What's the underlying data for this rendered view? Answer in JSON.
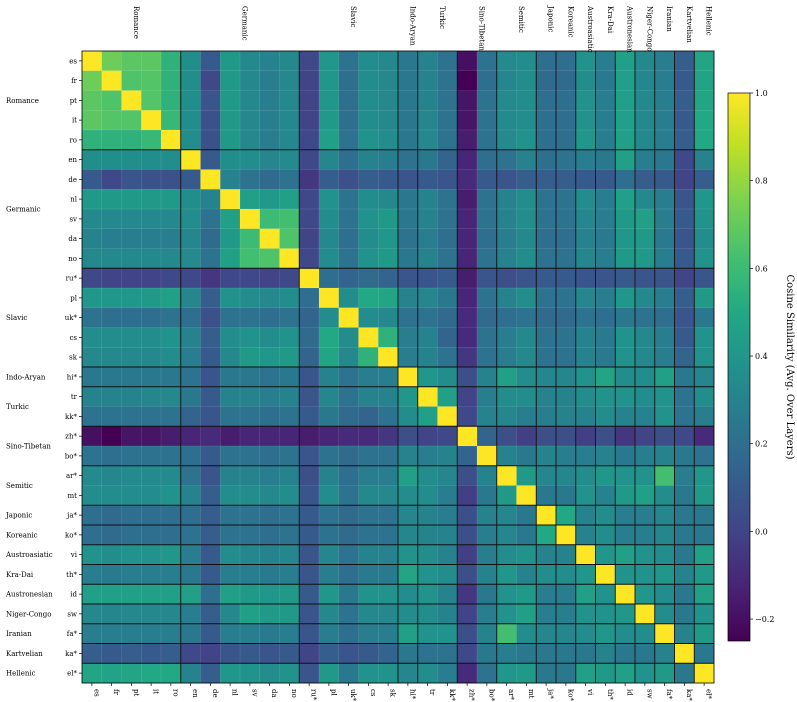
{
  "chart_data": {
    "type": "heatmap",
    "title": "",
    "languages": [
      "es",
      "fr",
      "pt",
      "it",
      "ro",
      "en",
      "de",
      "nl",
      "sv",
      "da",
      "no",
      "ru*",
      "pl",
      "uk*",
      "cs",
      "sk",
      "hi*",
      "tr",
      "kk*",
      "zh*",
      "bo*",
      "ar*",
      "mt",
      "ja*",
      "ko*",
      "vi",
      "th*",
      "id",
      "sw",
      "fa*",
      "ka*",
      "el*"
    ],
    "families": [
      {
        "name": "Romance",
        "start": 0,
        "end": 4
      },
      {
        "name": "Germanic",
        "start": 5,
        "end": 10
      },
      {
        "name": "Slavic",
        "start": 11,
        "end": 15
      },
      {
        "name": "Indo-Aryan",
        "start": 16,
        "end": 16
      },
      {
        "name": "Turkic",
        "start": 17,
        "end": 18
      },
      {
        "name": "Sino-Tibetan",
        "start": 19,
        "end": 20
      },
      {
        "name": "Semitic",
        "start": 21,
        "end": 22
      },
      {
        "name": "Japonic",
        "start": 23,
        "end": 23
      },
      {
        "name": "Koreanic",
        "start": 24,
        "end": 24
      },
      {
        "name": "Austroasiatic",
        "start": 25,
        "end": 25
      },
      {
        "name": "Kra-Dai",
        "start": 26,
        "end": 26
      },
      {
        "name": "Austronesian",
        "start": 27,
        "end": 27
      },
      {
        "name": "Niger-Congo",
        "start": 28,
        "end": 28
      },
      {
        "name": "Iranian",
        "start": 29,
        "end": 29
      },
      {
        "name": "Kartvelian",
        "start": 30,
        "end": 30
      },
      {
        "name": "Hellenic",
        "start": 31,
        "end": 31
      }
    ],
    "matrix": [
      [
        1.0,
        0.72,
        0.68,
        0.68,
        0.55,
        0.36,
        0.1,
        0.42,
        0.33,
        0.3,
        0.33,
        0.02,
        0.4,
        0.22,
        0.35,
        0.33,
        0.25,
        0.3,
        0.22,
        -0.2,
        0.22,
        0.34,
        0.35,
        0.2,
        0.2,
        0.38,
        0.28,
        0.45,
        0.33,
        0.28,
        0.12,
        0.48
      ],
      [
        0.72,
        1.0,
        0.65,
        0.66,
        0.55,
        0.36,
        0.02,
        0.42,
        0.33,
        0.28,
        0.33,
        0.0,
        0.4,
        0.2,
        0.35,
        0.33,
        0.25,
        0.3,
        0.22,
        -0.25,
        0.2,
        0.32,
        0.35,
        0.18,
        0.18,
        0.36,
        0.26,
        0.45,
        0.32,
        0.28,
        0.1,
        0.47
      ],
      [
        0.68,
        0.65,
        1.0,
        0.66,
        0.55,
        0.36,
        0.08,
        0.42,
        0.33,
        0.28,
        0.33,
        0.0,
        0.4,
        0.2,
        0.35,
        0.33,
        0.25,
        0.3,
        0.22,
        -0.18,
        0.22,
        0.34,
        0.35,
        0.2,
        0.2,
        0.38,
        0.28,
        0.45,
        0.33,
        0.28,
        0.12,
        0.48
      ],
      [
        0.68,
        0.66,
        0.66,
        1.0,
        0.58,
        0.36,
        0.06,
        0.42,
        0.33,
        0.28,
        0.33,
        0.0,
        0.42,
        0.2,
        0.35,
        0.33,
        0.25,
        0.32,
        0.22,
        -0.18,
        0.22,
        0.34,
        0.35,
        0.2,
        0.2,
        0.38,
        0.28,
        0.45,
        0.33,
        0.28,
        0.1,
        0.5
      ],
      [
        0.55,
        0.55,
        0.55,
        0.58,
        1.0,
        0.36,
        0.06,
        0.42,
        0.33,
        0.28,
        0.33,
        0.02,
        0.45,
        0.22,
        0.38,
        0.35,
        0.25,
        0.33,
        0.22,
        -0.15,
        0.22,
        0.34,
        0.38,
        0.2,
        0.2,
        0.4,
        0.28,
        0.45,
        0.33,
        0.28,
        0.12,
        0.5
      ],
      [
        0.36,
        0.36,
        0.36,
        0.36,
        0.36,
        1.0,
        0.1,
        0.36,
        0.35,
        0.32,
        0.34,
        0.02,
        0.32,
        0.2,
        0.3,
        0.28,
        0.22,
        0.25,
        0.15,
        -0.12,
        0.2,
        0.22,
        0.3,
        0.2,
        0.22,
        0.28,
        0.25,
        0.45,
        0.28,
        0.25,
        0.02,
        0.3
      ],
      [
        0.1,
        0.02,
        0.08,
        0.06,
        0.06,
        0.1,
        1.0,
        0.3,
        0.22,
        0.18,
        0.22,
        -0.05,
        0.12,
        0.06,
        0.12,
        0.1,
        0.08,
        0.1,
        0.08,
        -0.1,
        0.1,
        0.08,
        0.12,
        0.12,
        0.12,
        0.1,
        0.1,
        0.2,
        0.12,
        0.1,
        0.0,
        0.12
      ],
      [
        0.42,
        0.42,
        0.42,
        0.42,
        0.42,
        0.36,
        0.3,
        1.0,
        0.45,
        0.42,
        0.45,
        0.02,
        0.38,
        0.22,
        0.35,
        0.33,
        0.25,
        0.3,
        0.22,
        -0.15,
        0.22,
        0.3,
        0.35,
        0.22,
        0.22,
        0.35,
        0.28,
        0.45,
        0.33,
        0.28,
        0.08,
        0.4
      ],
      [
        0.33,
        0.33,
        0.33,
        0.33,
        0.33,
        0.35,
        0.22,
        0.45,
        1.0,
        0.6,
        0.62,
        0.02,
        0.35,
        0.22,
        0.38,
        0.42,
        0.25,
        0.3,
        0.22,
        -0.12,
        0.22,
        0.3,
        0.35,
        0.22,
        0.22,
        0.32,
        0.28,
        0.42,
        0.45,
        0.28,
        0.1,
        0.38
      ],
      [
        0.3,
        0.28,
        0.28,
        0.28,
        0.28,
        0.32,
        0.18,
        0.42,
        0.6,
        1.0,
        0.65,
        0.0,
        0.33,
        0.2,
        0.35,
        0.4,
        0.22,
        0.28,
        0.2,
        -0.12,
        0.2,
        0.28,
        0.33,
        0.2,
        0.2,
        0.3,
        0.26,
        0.4,
        0.42,
        0.26,
        0.08,
        0.35
      ],
      [
        0.33,
        0.33,
        0.33,
        0.33,
        0.33,
        0.34,
        0.22,
        0.45,
        0.62,
        0.65,
        1.0,
        0.02,
        0.35,
        0.22,
        0.38,
        0.42,
        0.25,
        0.3,
        0.22,
        -0.12,
        0.22,
        0.3,
        0.35,
        0.22,
        0.22,
        0.32,
        0.28,
        0.42,
        0.42,
        0.28,
        0.1,
        0.38
      ],
      [
        0.02,
        0.0,
        0.0,
        0.0,
        0.02,
        0.02,
        -0.05,
        0.02,
        0.02,
        0.0,
        0.02,
        1.0,
        0.2,
        0.15,
        0.18,
        0.15,
        0.08,
        0.08,
        0.1,
        -0.15,
        0.08,
        0.05,
        0.08,
        0.1,
        0.1,
        0.08,
        0.08,
        0.1,
        0.08,
        0.08,
        0.0,
        0.08
      ],
      [
        0.4,
        0.4,
        0.4,
        0.42,
        0.45,
        0.32,
        0.12,
        0.38,
        0.35,
        0.33,
        0.35,
        0.2,
        1.0,
        0.35,
        0.5,
        0.48,
        0.3,
        0.32,
        0.25,
        -0.12,
        0.22,
        0.3,
        0.35,
        0.22,
        0.22,
        0.32,
        0.28,
        0.4,
        0.33,
        0.28,
        0.12,
        0.42
      ],
      [
        0.22,
        0.2,
        0.2,
        0.2,
        0.22,
        0.2,
        0.06,
        0.22,
        0.22,
        0.2,
        0.22,
        0.15,
        0.35,
        1.0,
        0.35,
        0.33,
        0.22,
        0.22,
        0.18,
        -0.1,
        0.18,
        0.2,
        0.22,
        0.18,
        0.18,
        0.22,
        0.2,
        0.25,
        0.22,
        0.2,
        0.08,
        0.25
      ],
      [
        0.35,
        0.35,
        0.35,
        0.35,
        0.38,
        0.3,
        0.12,
        0.35,
        0.38,
        0.35,
        0.38,
        0.18,
        0.5,
        0.35,
        1.0,
        0.55,
        0.28,
        0.3,
        0.15,
        -0.1,
        0.22,
        0.28,
        0.33,
        0.22,
        0.22,
        0.3,
        0.26,
        0.38,
        0.33,
        0.28,
        0.1,
        0.38
      ],
      [
        0.33,
        0.33,
        0.33,
        0.33,
        0.35,
        0.28,
        0.1,
        0.33,
        0.42,
        0.4,
        0.42,
        0.15,
        0.48,
        0.33,
        0.55,
        1.0,
        0.28,
        0.3,
        0.22,
        -0.05,
        0.22,
        0.28,
        0.33,
        0.22,
        0.22,
        0.3,
        0.26,
        0.38,
        0.33,
        0.28,
        0.15,
        0.38
      ],
      [
        0.25,
        0.25,
        0.25,
        0.25,
        0.25,
        0.22,
        0.08,
        0.25,
        0.25,
        0.22,
        0.25,
        0.08,
        0.3,
        0.22,
        0.28,
        0.28,
        1.0,
        0.4,
        0.35,
        0.05,
        0.3,
        0.45,
        0.35,
        0.32,
        0.32,
        0.38,
        0.48,
        0.35,
        0.35,
        0.45,
        0.25,
        0.32
      ],
      [
        0.3,
        0.3,
        0.3,
        0.32,
        0.33,
        0.25,
        0.1,
        0.3,
        0.3,
        0.28,
        0.3,
        0.08,
        0.32,
        0.22,
        0.3,
        0.3,
        0.4,
        1.0,
        0.45,
        0.0,
        0.28,
        0.35,
        0.35,
        0.3,
        0.3,
        0.35,
        0.38,
        0.38,
        0.35,
        0.38,
        0.22,
        0.35
      ],
      [
        0.22,
        0.22,
        0.22,
        0.22,
        0.22,
        0.15,
        0.08,
        0.22,
        0.22,
        0.2,
        0.22,
        0.1,
        0.25,
        0.18,
        0.15,
        0.22,
        0.35,
        0.45,
        1.0,
        0.02,
        0.3,
        0.32,
        0.28,
        0.28,
        0.3,
        0.3,
        0.35,
        0.3,
        0.3,
        0.38,
        0.22,
        0.28
      ],
      [
        -0.2,
        -0.25,
        -0.18,
        -0.18,
        -0.15,
        -0.12,
        -0.1,
        -0.15,
        -0.12,
        -0.12,
        -0.12,
        -0.15,
        -0.12,
        -0.1,
        -0.1,
        -0.05,
        0.05,
        0.0,
        0.02,
        1.0,
        0.15,
        0.05,
        -0.02,
        0.05,
        0.05,
        -0.02,
        0.05,
        -0.05,
        0.0,
        0.05,
        0.02,
        -0.1
      ],
      [
        0.22,
        0.2,
        0.22,
        0.22,
        0.22,
        0.2,
        0.1,
        0.22,
        0.22,
        0.2,
        0.22,
        0.08,
        0.22,
        0.18,
        0.22,
        0.22,
        0.3,
        0.28,
        0.3,
        0.15,
        1.0,
        0.3,
        0.25,
        0.3,
        0.28,
        0.28,
        0.3,
        0.25,
        0.28,
        0.3,
        0.25,
        0.22
      ],
      [
        0.34,
        0.32,
        0.34,
        0.34,
        0.34,
        0.22,
        0.08,
        0.3,
        0.3,
        0.28,
        0.3,
        0.05,
        0.3,
        0.2,
        0.28,
        0.28,
        0.45,
        0.35,
        0.32,
        0.05,
        0.3,
        1.0,
        0.42,
        0.32,
        0.32,
        0.35,
        0.4,
        0.38,
        0.38,
        0.62,
        0.28,
        0.4
      ],
      [
        0.35,
        0.35,
        0.35,
        0.35,
        0.38,
        0.3,
        0.12,
        0.35,
        0.35,
        0.33,
        0.35,
        0.08,
        0.35,
        0.22,
        0.33,
        0.33,
        0.35,
        0.35,
        0.28,
        -0.02,
        0.25,
        0.42,
        1.0,
        0.25,
        0.25,
        0.38,
        0.3,
        0.42,
        0.45,
        0.35,
        0.25,
        0.42
      ],
      [
        0.2,
        0.18,
        0.2,
        0.2,
        0.2,
        0.2,
        0.12,
        0.22,
        0.22,
        0.2,
        0.22,
        0.1,
        0.22,
        0.18,
        0.22,
        0.22,
        0.32,
        0.3,
        0.28,
        0.05,
        0.3,
        0.32,
        0.25,
        1.0,
        0.5,
        0.3,
        0.35,
        0.28,
        0.28,
        0.32,
        0.25,
        0.25
      ],
      [
        0.2,
        0.18,
        0.2,
        0.2,
        0.2,
        0.22,
        0.12,
        0.22,
        0.22,
        0.2,
        0.22,
        0.1,
        0.22,
        0.18,
        0.22,
        0.22,
        0.32,
        0.3,
        0.3,
        0.05,
        0.28,
        0.32,
        0.25,
        0.5,
        1.0,
        0.3,
        0.35,
        0.28,
        0.28,
        0.32,
        0.25,
        0.25
      ],
      [
        0.38,
        0.36,
        0.38,
        0.38,
        0.4,
        0.28,
        0.1,
        0.35,
        0.32,
        0.3,
        0.32,
        0.08,
        0.32,
        0.22,
        0.3,
        0.3,
        0.38,
        0.35,
        0.3,
        -0.02,
        0.28,
        0.35,
        0.38,
        0.3,
        0.3,
        1.0,
        0.4,
        0.45,
        0.38,
        0.35,
        0.25,
        0.45
      ],
      [
        0.28,
        0.26,
        0.28,
        0.28,
        0.28,
        0.25,
        0.1,
        0.28,
        0.28,
        0.26,
        0.28,
        0.08,
        0.28,
        0.2,
        0.26,
        0.26,
        0.48,
        0.38,
        0.35,
        0.05,
        0.3,
        0.4,
        0.3,
        0.35,
        0.35,
        0.4,
        1.0,
        0.38,
        0.38,
        0.4,
        0.3,
        0.42
      ],
      [
        0.45,
        0.45,
        0.45,
        0.45,
        0.45,
        0.45,
        0.2,
        0.45,
        0.42,
        0.4,
        0.42,
        0.1,
        0.4,
        0.25,
        0.38,
        0.38,
        0.35,
        0.38,
        0.3,
        -0.05,
        0.25,
        0.38,
        0.42,
        0.28,
        0.28,
        0.45,
        0.38,
        1.0,
        0.4,
        0.35,
        0.25,
        0.45
      ],
      [
        0.33,
        0.32,
        0.33,
        0.33,
        0.33,
        0.28,
        0.12,
        0.33,
        0.45,
        0.42,
        0.42,
        0.08,
        0.33,
        0.22,
        0.33,
        0.33,
        0.35,
        0.35,
        0.3,
        0.0,
        0.28,
        0.38,
        0.45,
        0.28,
        0.28,
        0.38,
        0.38,
        0.4,
        1.0,
        0.35,
        0.25,
        0.38
      ],
      [
        0.28,
        0.28,
        0.28,
        0.28,
        0.28,
        0.25,
        0.1,
        0.28,
        0.28,
        0.26,
        0.28,
        0.08,
        0.28,
        0.2,
        0.28,
        0.28,
        0.45,
        0.38,
        0.38,
        0.05,
        0.3,
        0.62,
        0.35,
        0.32,
        0.32,
        0.35,
        0.4,
        0.35,
        0.35,
        1.0,
        0.3,
        0.42
      ],
      [
        0.12,
        0.1,
        0.12,
        0.1,
        0.12,
        0.02,
        0.0,
        0.08,
        0.1,
        0.08,
        0.1,
        0.0,
        0.12,
        0.08,
        0.1,
        0.15,
        0.25,
        0.22,
        0.22,
        0.02,
        0.25,
        0.28,
        0.25,
        0.25,
        0.25,
        0.25,
        0.3,
        0.25,
        0.25,
        0.3,
        1.0,
        0.25
      ],
      [
        0.48,
        0.47,
        0.48,
        0.5,
        0.5,
        0.3,
        0.12,
        0.4,
        0.38,
        0.35,
        0.38,
        0.08,
        0.42,
        0.25,
        0.38,
        0.38,
        0.32,
        0.35,
        0.28,
        -0.1,
        0.22,
        0.4,
        0.42,
        0.25,
        0.25,
        0.45,
        0.42,
        0.45,
        0.38,
        0.42,
        0.25,
        1.0
      ]
    ],
    "colorbar": {
      "label": "Cosine Similarity (Avg. Over Layers)",
      "min": -0.25,
      "max": 1.0,
      "ticks": [
        -0.2,
        0.0,
        0.2,
        0.4,
        0.6,
        0.8,
        1.0
      ],
      "tick_labels": [
        "−0.2",
        "0.0",
        "0.2",
        "0.4",
        "0.6",
        "0.8",
        "1.0"
      ],
      "colormap": "viridis"
    }
  }
}
